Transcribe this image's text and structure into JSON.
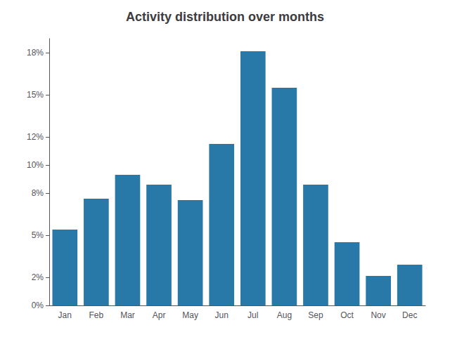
{
  "chart_data": {
    "type": "bar",
    "title": "Activity distribution over months",
    "categories": [
      "Jan",
      "Feb",
      "Mar",
      "Apr",
      "May",
      "Jun",
      "Jul",
      "Aug",
      "Sep",
      "Oct",
      "Nov",
      "Dec"
    ],
    "values": [
      0.054,
      0.076,
      0.093,
      0.086,
      0.075,
      0.115,
      0.181,
      0.155,
      0.086,
      0.045,
      0.021,
      0.029
    ],
    "color": "#2878a8",
    "ylim": [
      0,
      0.19
    ],
    "yticks": [
      {
        "value": 0.0,
        "label": "0%"
      },
      {
        "value": 0.02,
        "label": "2%"
      },
      {
        "value": 0.05,
        "label": "5%"
      },
      {
        "value": 0.08,
        "label": "8%"
      },
      {
        "value": 0.1,
        "label": "10%"
      },
      {
        "value": 0.12,
        "label": "12%"
      },
      {
        "value": 0.15,
        "label": "15%"
      },
      {
        "value": 0.18,
        "label": "18%"
      }
    ],
    "grid": false
  }
}
